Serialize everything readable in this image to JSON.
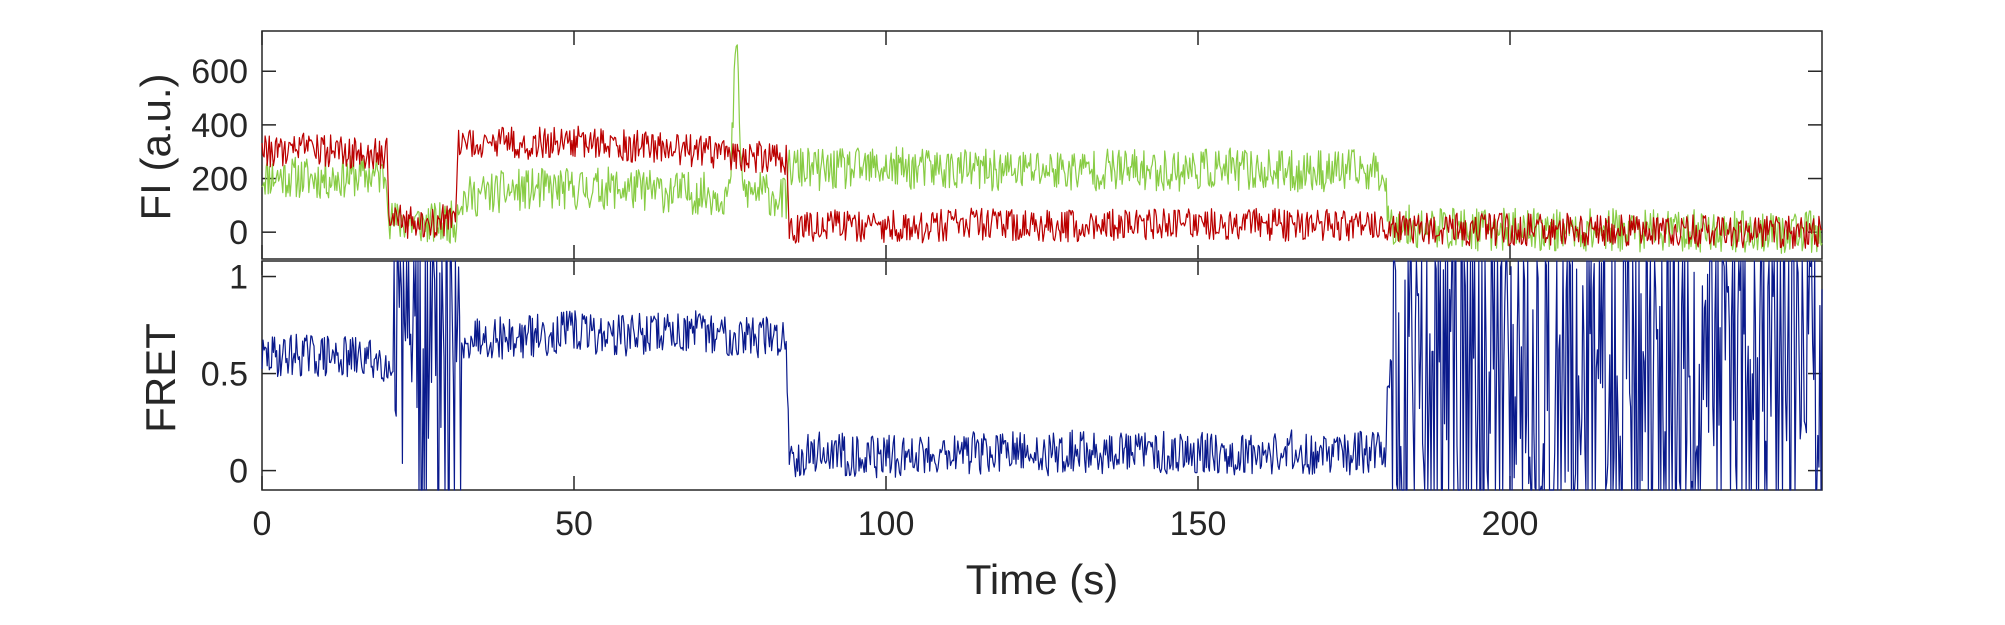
{
  "chart_data": [
    {
      "type": "line",
      "ylabel": "FI (a.u.)",
      "xlim": [
        0,
        250
      ],
      "ylim": [
        -100,
        750
      ],
      "yticks": [
        0,
        200,
        400,
        600
      ],
      "series": [
        {
          "color": "#88cc44",
          "x": [
            0,
            5,
            10,
            15,
            20,
            20.5,
            22,
            25,
            28,
            31,
            31.5,
            35,
            40,
            45,
            50,
            55,
            60,
            65,
            70,
            75,
            76,
            77,
            80,
            84,
            84.5,
            86,
            90,
            95,
            100,
            105,
            110,
            115,
            120,
            125,
            130,
            135,
            140,
            145,
            150,
            155,
            160,
            165,
            170,
            175,
            180,
            180.5,
            185,
            190,
            195,
            200,
            205,
            210,
            215,
            220,
            225,
            230,
            235,
            240,
            245,
            250
          ],
          "values": [
            210,
            205,
            200,
            210,
            215,
            40,
            40,
            35,
            30,
            40,
            120,
            140,
            155,
            160,
            160,
            165,
            160,
            150,
            145,
            140,
            730,
            150,
            150,
            120,
            240,
            240,
            230,
            235,
            240,
            235,
            235,
            230,
            230,
            235,
            230,
            235,
            230,
            230,
            235,
            235,
            230,
            225,
            230,
            230,
            225,
            30,
            20,
            15,
            10,
            10,
            10,
            5,
            10,
            5,
            5,
            5,
            5,
            0,
            0,
            0
          ]
        },
        {
          "color": "#bb0000",
          "x": [
            0,
            5,
            10,
            15,
            20,
            20.5,
            22,
            25,
            28,
            31,
            31.5,
            35,
            40,
            45,
            50,
            55,
            60,
            65,
            70,
            75,
            80,
            84,
            84.5,
            86,
            90,
            95,
            100,
            105,
            110,
            115,
            120,
            125,
            130,
            135,
            140,
            145,
            150,
            155,
            160,
            165,
            170,
            175,
            180,
            185,
            190,
            195,
            200,
            205,
            210,
            215,
            220,
            225,
            230,
            235,
            240,
            245,
            250
          ],
          "values": [
            300,
            310,
            305,
            295,
            290,
            40,
            40,
            35,
            40,
            45,
            320,
            330,
            335,
            330,
            340,
            325,
            320,
            315,
            300,
            290,
            280,
            270,
            20,
            20,
            20,
            25,
            20,
            20,
            25,
            30,
            25,
            20,
            25,
            30,
            25,
            30,
            25,
            30,
            30,
            25,
            30,
            25,
            20,
            15,
            10,
            10,
            10,
            10,
            10,
            5,
            5,
            5,
            5,
            0,
            0,
            0,
            0
          ]
        }
      ]
    },
    {
      "type": "line",
      "xlabel": "Time (s)",
      "ylabel": "FRET",
      "xlim": [
        0,
        250
      ],
      "ylim": [
        -0.1,
        1.08
      ],
      "xticks": [
        0,
        50,
        100,
        150,
        200
      ],
      "yticks": [
        0,
        0.5,
        1
      ],
      "series": [
        {
          "color": "#0a1a8c",
          "x": [
            0,
            5,
            10,
            15,
            20,
            20.5,
            22,
            25,
            28,
            31,
            31.5,
            35,
            40,
            45,
            50,
            55,
            60,
            65,
            70,
            75,
            80,
            84,
            84.5,
            86,
            90,
            95,
            100,
            105,
            110,
            115,
            120,
            125,
            130,
            135,
            140,
            145,
            150,
            155,
            160,
            165,
            170,
            175,
            180,
            180.5,
            185,
            190,
            195,
            200,
            205,
            210,
            215,
            220,
            225,
            230,
            235,
            240,
            245,
            250
          ],
          "values": [
            0.58,
            0.6,
            0.59,
            0.58,
            0.57,
            0.5,
            0.6,
            0.5,
            0.4,
            0.5,
            0.68,
            0.7,
            0.68,
            0.7,
            0.72,
            0.7,
            0.7,
            0.72,
            0.71,
            0.7,
            0.69,
            0.68,
            0.08,
            0.08,
            0.1,
            0.08,
            0.07,
            0.08,
            0.1,
            0.09,
            0.09,
            0.08,
            0.1,
            0.09,
            0.1,
            0.09,
            0.1,
            0.09,
            0.09,
            0.1,
            0.08,
            0.09,
            0.1,
            0.5,
            0.5,
            0.5,
            0.5,
            0.5,
            0.5,
            0.5,
            0.5,
            0.5,
            0.5,
            0.5,
            0.5,
            0.5,
            0.5,
            0.5
          ]
        }
      ]
    }
  ]
}
